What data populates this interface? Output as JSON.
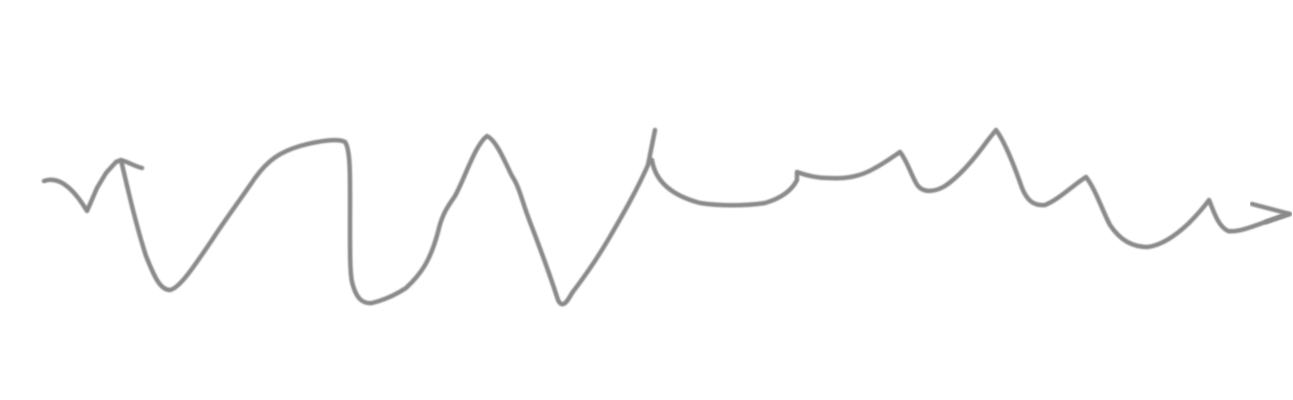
{
  "drawing": {
    "stroke_color": "#8a8a8a",
    "background_color": "#ffffff"
  }
}
